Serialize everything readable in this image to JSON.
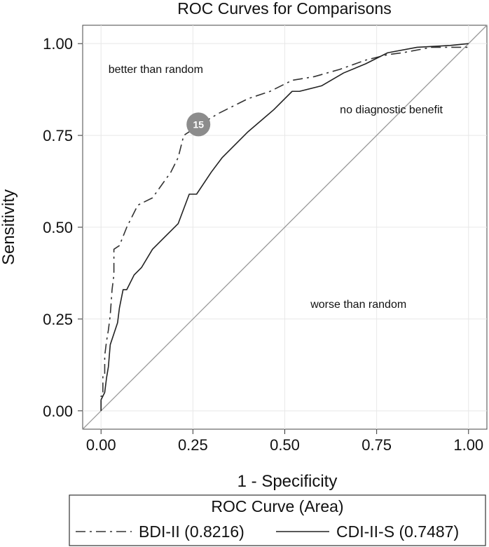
{
  "chart_data": {
    "type": "line",
    "title": "ROC Curves for Comparisons",
    "xlabel": "1 - Specificity",
    "ylabel": "Sensitivity",
    "xlim": [
      -0.05,
      1.05
    ],
    "ylim": [
      -0.05,
      1.05
    ],
    "xticks": [
      0.0,
      0.25,
      0.5,
      0.75,
      1.0
    ],
    "yticks": [
      0.0,
      0.25,
      0.5,
      0.75,
      1.0
    ],
    "xtick_labels": [
      "0.00",
      "0.25",
      "0.50",
      "0.75",
      "1.00"
    ],
    "ytick_labels": [
      "0.00",
      "0.25",
      "0.50",
      "0.75",
      "1.00"
    ],
    "grid": true,
    "legend_title": "ROC Curve (Area)",
    "legend_position": "bottom",
    "series": [
      {
        "name": "BDI-II (0.8216)",
        "style": "dashed",
        "color": "#333333",
        "points": [
          [
            0.0,
            0.0
          ],
          [
            0.0,
            0.04
          ],
          [
            0.005,
            0.04
          ],
          [
            0.005,
            0.1
          ],
          [
            0.01,
            0.1
          ],
          [
            0.01,
            0.15
          ],
          [
            0.015,
            0.19
          ],
          [
            0.02,
            0.22
          ],
          [
            0.025,
            0.26
          ],
          [
            0.03,
            0.33
          ],
          [
            0.035,
            0.37
          ],
          [
            0.035,
            0.44
          ],
          [
            0.05,
            0.45
          ],
          [
            0.07,
            0.5
          ],
          [
            0.1,
            0.56
          ],
          [
            0.14,
            0.58
          ],
          [
            0.19,
            0.65
          ],
          [
            0.21,
            0.69
          ],
          [
            0.225,
            0.75
          ],
          [
            0.27,
            0.78
          ],
          [
            0.32,
            0.81
          ],
          [
            0.4,
            0.85
          ],
          [
            0.46,
            0.87
          ],
          [
            0.52,
            0.9
          ],
          [
            0.58,
            0.91
          ],
          [
            0.65,
            0.93
          ],
          [
            0.72,
            0.955
          ],
          [
            0.78,
            0.97
          ],
          [
            0.82,
            0.975
          ],
          [
            0.9,
            0.99
          ],
          [
            1.0,
            0.99
          ]
        ]
      },
      {
        "name": "CDI-II-S (0.7487)",
        "style": "solid",
        "color": "#222222",
        "points": [
          [
            0.0,
            0.0
          ],
          [
            0.0,
            0.03
          ],
          [
            0.01,
            0.05
          ],
          [
            0.015,
            0.09
          ],
          [
            0.02,
            0.12
          ],
          [
            0.025,
            0.18
          ],
          [
            0.035,
            0.21
          ],
          [
            0.045,
            0.24
          ],
          [
            0.05,
            0.28
          ],
          [
            0.06,
            0.33
          ],
          [
            0.07,
            0.33
          ],
          [
            0.09,
            0.37
          ],
          [
            0.11,
            0.39
          ],
          [
            0.14,
            0.44
          ],
          [
            0.17,
            0.47
          ],
          [
            0.21,
            0.51
          ],
          [
            0.24,
            0.59
          ],
          [
            0.26,
            0.59
          ],
          [
            0.3,
            0.65
          ],
          [
            0.33,
            0.69
          ],
          [
            0.4,
            0.76
          ],
          [
            0.47,
            0.82
          ],
          [
            0.52,
            0.87
          ],
          [
            0.54,
            0.87
          ],
          [
            0.6,
            0.885
          ],
          [
            0.66,
            0.92
          ],
          [
            0.72,
            0.945
          ],
          [
            0.78,
            0.975
          ],
          [
            0.86,
            0.99
          ],
          [
            0.95,
            0.995
          ],
          [
            1.0,
            1.0
          ]
        ]
      },
      {
        "name": "reference",
        "style": "solid",
        "color": "#999999",
        "points": [
          [
            -0.05,
            -0.05
          ],
          [
            1.05,
            1.05
          ]
        ]
      }
    ],
    "annotations": [
      {
        "text": "better than random",
        "x": 0.02,
        "y": 0.92
      },
      {
        "text": "no diagnostic benefit",
        "x": 0.65,
        "y": 0.81
      },
      {
        "text": "worse than random",
        "x": 0.57,
        "y": 0.28
      }
    ],
    "marker": {
      "text": "15",
      "x": 0.265,
      "y": 0.78,
      "color": "#8c8c8c"
    }
  }
}
